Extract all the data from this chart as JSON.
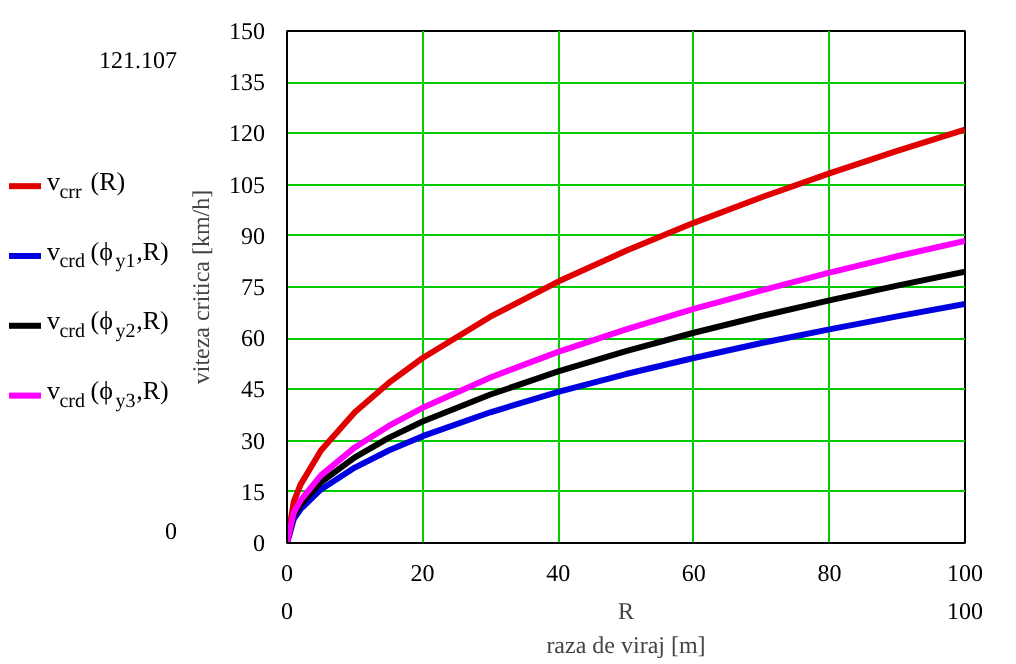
{
  "chart_data": {
    "type": "line",
    "xlabel": "R\nraza de viraj [m]",
    "ylabel": "viteza critica [km/h]",
    "x": [
      0,
      1,
      2,
      5,
      10,
      15,
      20,
      30,
      40,
      50,
      60,
      70,
      80,
      90,
      100
    ],
    "series": [
      {
        "name": "v$_{crr}$(R)",
        "color": "#e00000",
        "values": [
          0,
          12.1,
          17.1,
          27.1,
          38.3,
          46.9,
          54.2,
          66.3,
          76.6,
          85.6,
          93.8,
          101.3,
          108.3,
          114.9,
          121.1
        ]
      },
      {
        "name": "v$_{crd}$(ϕ$_{y1}$,R)",
        "color": "#0000e0",
        "values": [
          0,
          7,
          9.9,
          15.7,
          22.1,
          27.1,
          31.3,
          38.3,
          44.3,
          49.5,
          54.2,
          58.6,
          62.6,
          66.4,
          70
        ]
      },
      {
        "name": "v$_{crd}$(ϕ$_{y2}$,R)",
        "color": "#000000",
        "values": [
          0,
          8,
          11.2,
          17.8,
          25.1,
          30.8,
          35.6,
          43.5,
          50.3,
          56.2,
          61.6,
          66.5,
          71.1,
          75.4,
          79.5
        ]
      },
      {
        "name": "v$_{crd}$(ϕ$_{y3}$,R)",
        "color": "#ff00ff",
        "values": [
          0,
          8.9,
          12.5,
          19.8,
          28,
          34.3,
          39.6,
          48.5,
          56,
          62.6,
          68.6,
          74,
          79.2,
          84,
          88.5
        ]
      }
    ],
    "xlim": [
      0,
      100
    ],
    "xticks": [
      0,
      20,
      40,
      60,
      80,
      100
    ],
    "ylim": [
      0,
      150
    ],
    "yticks": [
      0,
      15,
      30,
      45,
      60,
      75,
      90,
      105,
      120,
      135,
      150
    ],
    "grid": true,
    "legend": "left",
    "line_style": "solid",
    "annotations": [
      "121.107",
      "0",
      "0",
      "100"
    ]
  }
}
